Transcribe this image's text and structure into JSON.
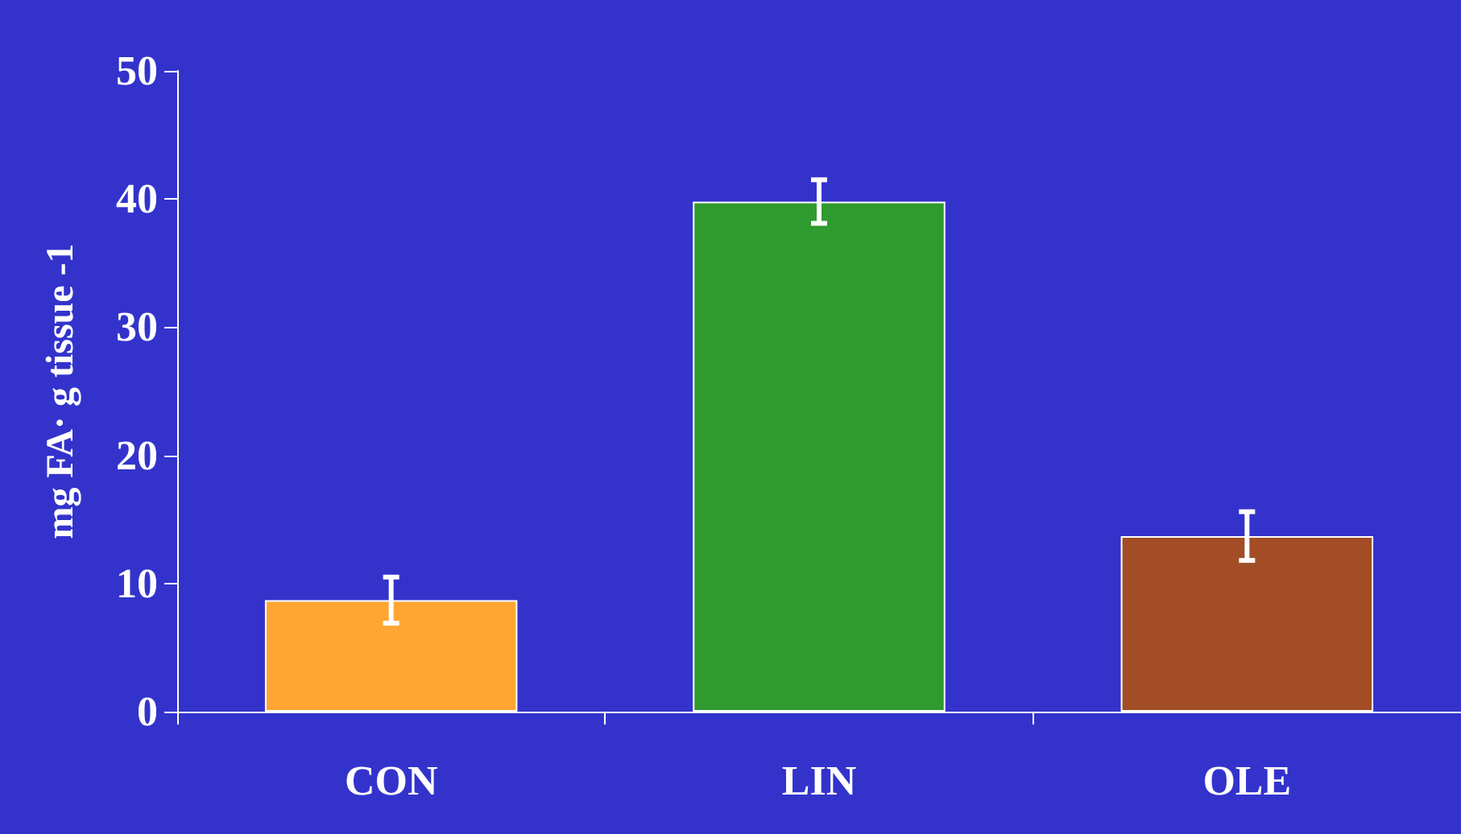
{
  "chart_data": {
    "type": "bar",
    "ylabel": "mg FA· g tissue -1",
    "categories": [
      "CON",
      "LIN",
      "OLE"
    ],
    "values": [
      8.7,
      39.8,
      13.7
    ],
    "colors": [
      "#ffa532",
      "#2f9a2f",
      "#a24d25"
    ],
    "errors": [
      1.8,
      1.7,
      1.9
    ],
    "ylim": [
      0,
      50
    ],
    "yticks": [
      0,
      10,
      20,
      30,
      40,
      50
    ],
    "grid": false
  }
}
